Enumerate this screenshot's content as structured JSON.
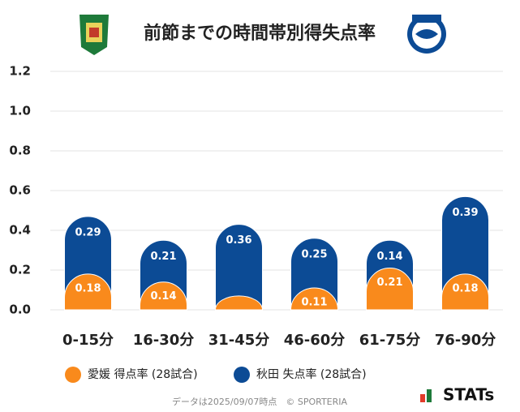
{
  "chart_data": {
    "type": "stacked_bar",
    "title": "前節までの時間帯別得失点率",
    "categories": [
      "0-15分",
      "16-30分",
      "31-45分",
      "46-60分",
      "61-75分",
      "76-90分"
    ],
    "series": [
      {
        "name": "愛媛 得点率 (28試合)",
        "color": "#f98a1c",
        "values": [
          0.18,
          0.14,
          0.07,
          0.11,
          0.21,
          0.18
        ],
        "value_labels": [
          "0.18",
          "0.14",
          null,
          "0.11",
          "0.21",
          "0.18"
        ]
      },
      {
        "name": "秋田 失点率 (28試合)",
        "color": "#0c4b95",
        "values": [
          0.29,
          0.21,
          0.36,
          0.25,
          0.14,
          0.39
        ]
      }
    ],
    "ylim": [
      0,
      1.2
    ],
    "yticks": [
      {
        "value": 0,
        "label": "0.0"
      },
      0.2,
      0.4,
      0.6,
      0.8,
      {
        "value": 1,
        "label": "1.0"
      },
      1.2
    ],
    "grid": true,
    "footnote": "データは2025/09/07時点　© SPORTERIA",
    "brand": "STATs"
  }
}
